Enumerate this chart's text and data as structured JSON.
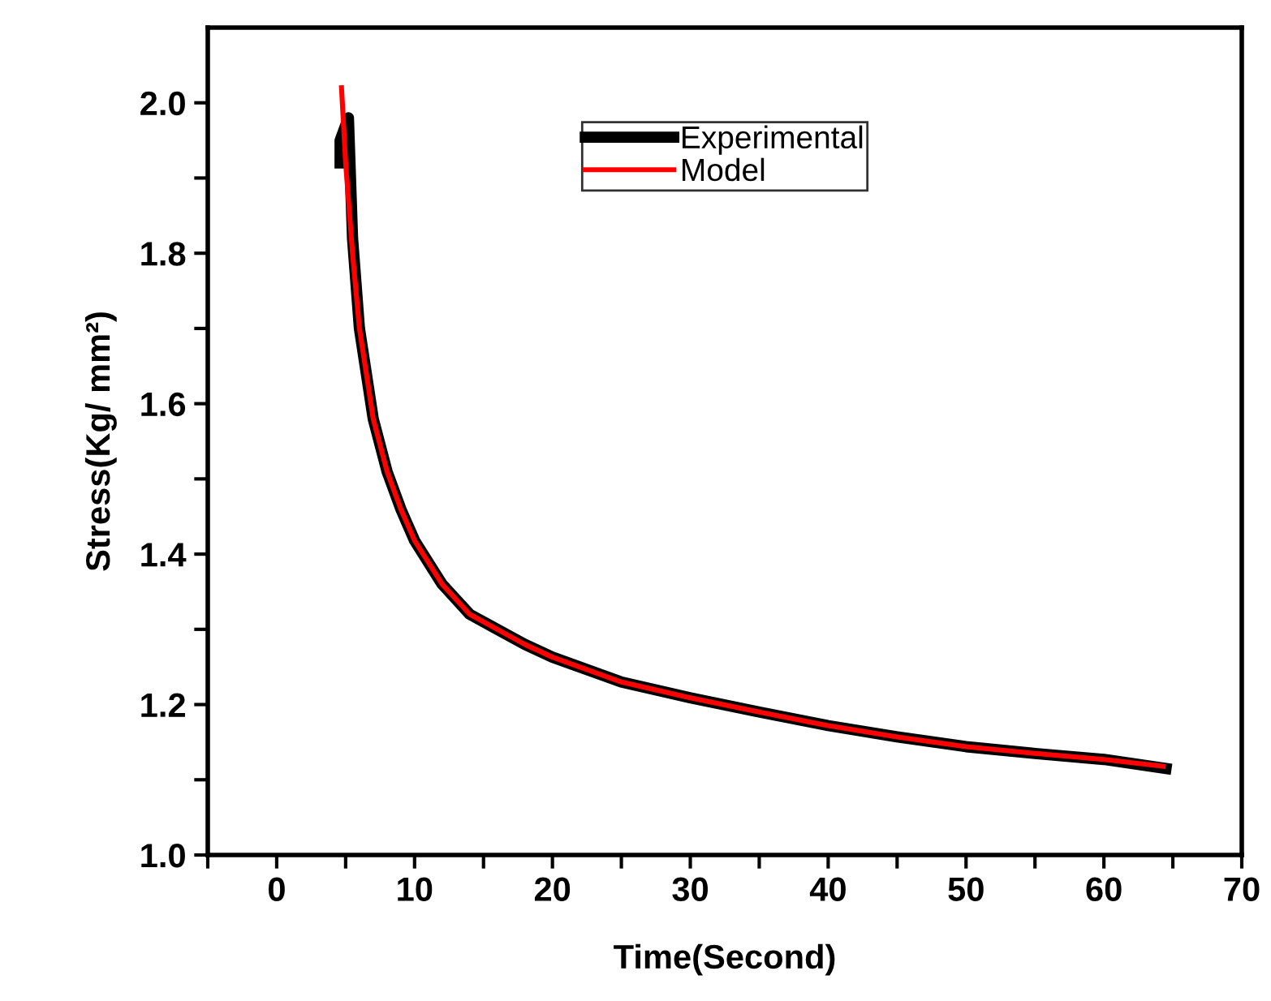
{
  "chart_data": {
    "type": "line",
    "xlabel": "Time(Second)",
    "ylabel": "Stress(Kg/ mm²)",
    "xlim": [
      -5,
      70
    ],
    "ylim": [
      1.0,
      2.1
    ],
    "xticks": [
      {
        "value": -5,
        "label": null
      },
      0,
      {
        "value": 5,
        "label": null
      },
      10,
      {
        "value": 15,
        "label": null
      },
      20,
      {
        "value": 25,
        "label": null
      },
      30,
      {
        "value": 35,
        "label": null
      },
      40,
      {
        "value": 45,
        "label": null
      },
      50,
      {
        "value": 55,
        "label": null
      },
      60,
      {
        "value": 65,
        "label": null
      },
      70
    ],
    "yticks": [
      {
        "value": 1.0,
        "label": "1.0"
      },
      {
        "value": 1.1,
        "label": null
      },
      1.2,
      {
        "value": 1.3,
        "label": null
      },
      1.4,
      {
        "value": 1.5,
        "label": null
      },
      1.6,
      {
        "value": 1.7,
        "label": null
      },
      1.8,
      {
        "value": 1.9,
        "label": null
      },
      {
        "value": 2.0,
        "label": "2.0"
      }
    ],
    "grid": false,
    "legend": "top",
    "marker": "none",
    "line_style": "solid",
    "series": [
      {
        "name": "Experimental",
        "color": "#000000",
        "x": [
          4.6,
          4.6,
          5.2,
          5.5,
          6,
          7,
          8,
          9,
          10,
          12,
          14,
          16,
          18,
          20,
          25,
          30,
          35,
          40,
          45,
          50,
          55,
          60,
          64.5
        ],
        "values": [
          1.92,
          1.95,
          1.98,
          1.82,
          1.7,
          1.58,
          1.51,
          1.46,
          1.418,
          1.36,
          1.32,
          1.3,
          1.28,
          1.263,
          1.23,
          1.209,
          1.19,
          1.172,
          1.157,
          1.144,
          1.135,
          1.127,
          1.115
        ]
      },
      {
        "name": "Model",
        "color": "#ff0000",
        "x": [
          4.7,
          5,
          5.5,
          6,
          7,
          8,
          9,
          10,
          12,
          14,
          16,
          18,
          20,
          25,
          30,
          35,
          40,
          45,
          50,
          55,
          60,
          64.3
        ],
        "values": [
          2.02,
          1.92,
          1.8,
          1.7,
          1.58,
          1.51,
          1.46,
          1.418,
          1.36,
          1.32,
          1.3,
          1.28,
          1.263,
          1.23,
          1.209,
          1.19,
          1.172,
          1.157,
          1.144,
          1.135,
          1.127,
          1.118
        ]
      }
    ]
  }
}
